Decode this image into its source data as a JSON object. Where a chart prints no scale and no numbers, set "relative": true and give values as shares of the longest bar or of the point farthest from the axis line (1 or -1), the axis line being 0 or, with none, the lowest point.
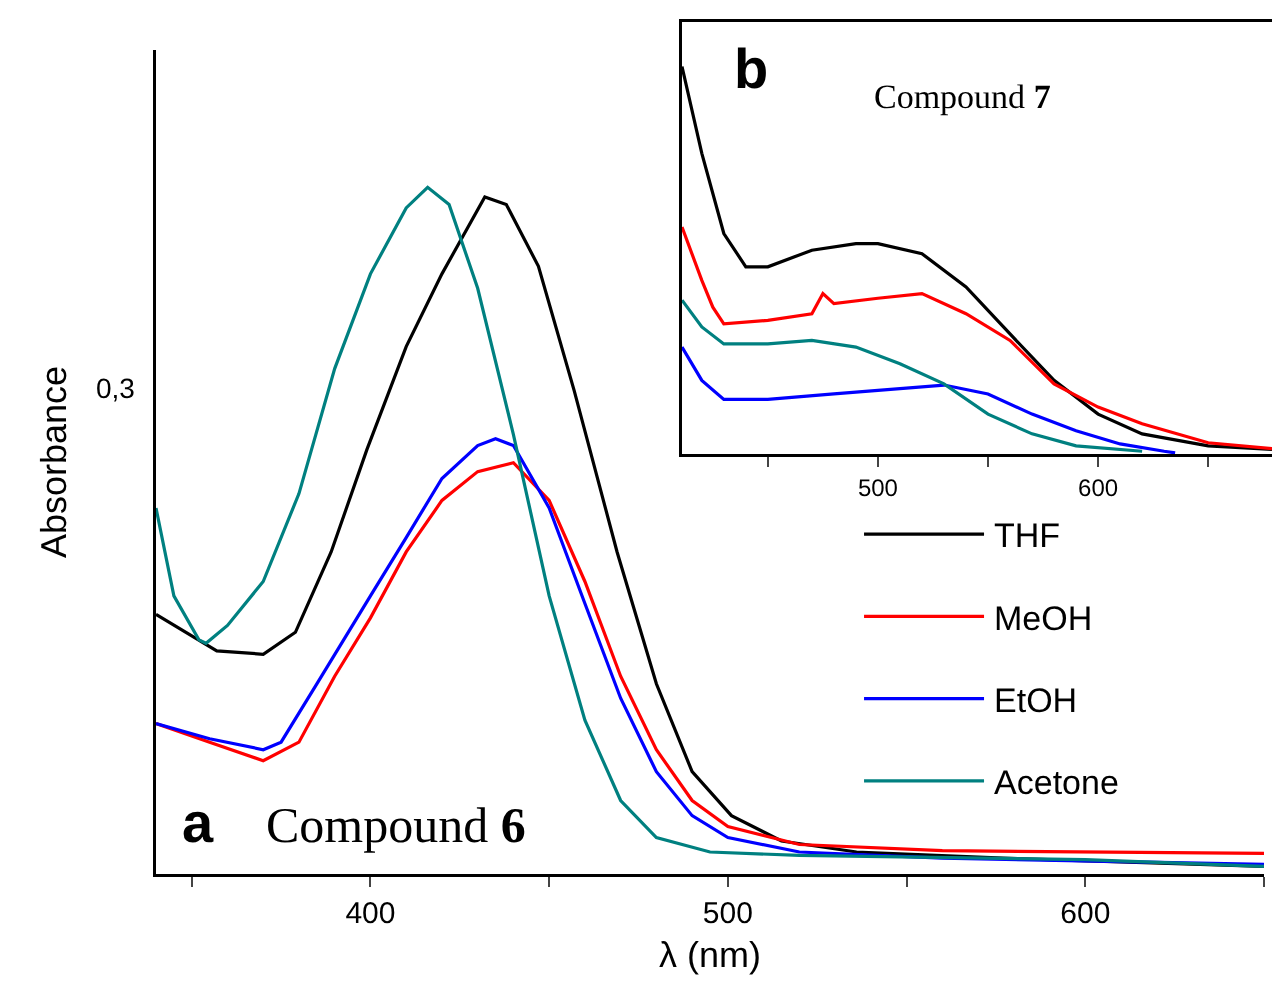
{
  "chart_data": [
    {
      "type": "line",
      "relative": true,
      "xlabel": "λ (nm)",
      "ylabel": "Absorbance",
      "annotations": [
        "a",
        "Compound 6",
        "0,3"
      ],
      "xlim": [
        340,
        650
      ],
      "xticks": [
        {
          "value": 350,
          "label": null
        },
        400,
        {
          "value": 450,
          "label": null
        },
        500,
        {
          "value": 550,
          "label": null
        },
        600,
        {
          "value": 650,
          "label": null
        }
      ],
      "grid": false,
      "legend": "right",
      "line_style": "solid",
      "marker": "none",
      "series": [
        {
          "name": "THF",
          "color": "#000000",
          "x": [
            340,
            357,
            370,
            379,
            389,
            399,
            410,
            420,
            432,
            438,
            447,
            457,
            469,
            480,
            490,
            501,
            515,
            536,
            577,
            650
          ],
          "values": [
            0.378,
            0.325,
            0.32,
            0.352,
            0.469,
            0.618,
            0.768,
            0.874,
            0.986,
            0.975,
            0.885,
            0.704,
            0.469,
            0.277,
            0.149,
            0.085,
            0.048,
            0.032,
            0.023,
            0.011
          ]
        },
        {
          "name": "MeOH",
          "color": "#ff0000",
          "x": [
            340,
            355,
            370,
            380,
            390,
            400,
            410,
            420,
            430,
            440,
            450,
            460,
            470,
            480,
            490,
            500,
            520,
            560,
            650
          ],
          "values": [
            0.219,
            0.192,
            0.165,
            0.192,
            0.288,
            0.373,
            0.469,
            0.544,
            0.586,
            0.599,
            0.544,
            0.426,
            0.288,
            0.181,
            0.107,
            0.069,
            0.043,
            0.034,
            0.03
          ]
        },
        {
          "name": "EtOH",
          "color": "#0000ff",
          "x": [
            340,
            355,
            370,
            375,
            385,
            400,
            410,
            420,
            430,
            435,
            440,
            450,
            460,
            470,
            480,
            490,
            500,
            520,
            560,
            650
          ],
          "values": [
            0.219,
            0.197,
            0.181,
            0.192,
            0.277,
            0.405,
            0.49,
            0.576,
            0.624,
            0.634,
            0.624,
            0.533,
            0.394,
            0.256,
            0.149,
            0.085,
            0.053,
            0.032,
            0.023,
            0.014
          ]
        },
        {
          "name": "Acetone",
          "color": "#008080",
          "x": [
            340,
            345,
            352,
            354,
            360,
            370,
            380,
            390,
            400,
            410,
            416,
            422,
            430,
            440,
            450,
            460,
            470,
            480,
            495,
            520,
            600,
            650
          ],
          "values": [
            0.533,
            0.405,
            0.341,
            0.336,
            0.362,
            0.426,
            0.554,
            0.736,
            0.874,
            0.97,
            1.0,
            0.975,
            0.853,
            0.64,
            0.405,
            0.224,
            0.107,
            0.053,
            0.032,
            0.027,
            0.021,
            0.011
          ]
        }
      ]
    },
    {
      "type": "line",
      "relative": true,
      "annotations": [
        "b",
        "Compound 7"
      ],
      "xlim": [
        411,
        679
      ],
      "xticks": [
        {
          "value": 450,
          "label": null
        },
        500,
        {
          "value": 550,
          "label": null
        },
        600,
        {
          "value": 650,
          "label": null
        }
      ],
      "grid": false,
      "legend": false,
      "line_style": "solid",
      "marker": "none",
      "series": [
        {
          "color": "#000000",
          "x": [
            411,
            420,
            430,
            440,
            450,
            470,
            490,
            500,
            520,
            540,
            560,
            580,
            600,
            620,
            650,
            679
          ],
          "values": [
            1.0,
            0.776,
            0.569,
            0.483,
            0.483,
            0.526,
            0.543,
            0.543,
            0.517,
            0.431,
            0.31,
            0.19,
            0.103,
            0.052,
            0.021,
            0.012
          ]
        },
        {
          "color": "#ff0000",
          "x": [
            411,
            420,
            425,
            430,
            450,
            470,
            475,
            480,
            500,
            520,
            540,
            560,
            580,
            600,
            620,
            650,
            679
          ],
          "values": [
            0.586,
            0.448,
            0.379,
            0.336,
            0.345,
            0.362,
            0.414,
            0.388,
            0.402,
            0.414,
            0.362,
            0.293,
            0.181,
            0.121,
            0.078,
            0.029,
            0.014
          ]
        },
        {
          "color": "#0000ff",
          "x": [
            411,
            420,
            430,
            450,
            480,
            500,
            530,
            550,
            570,
            590,
            610,
            630,
            635
          ],
          "values": [
            0.276,
            0.19,
            0.141,
            0.141,
            0.155,
            0.164,
            0.178,
            0.155,
            0.103,
            0.06,
            0.026,
            0.007,
            0.003
          ]
        },
        {
          "color": "#008080",
          "x": [
            411,
            420,
            430,
            450,
            470,
            490,
            510,
            530,
            550,
            570,
            590,
            620
          ],
          "values": [
            0.397,
            0.328,
            0.284,
            0.284,
            0.293,
            0.276,
            0.233,
            0.181,
            0.103,
            0.052,
            0.021,
            0.007
          ]
        }
      ]
    }
  ]
}
